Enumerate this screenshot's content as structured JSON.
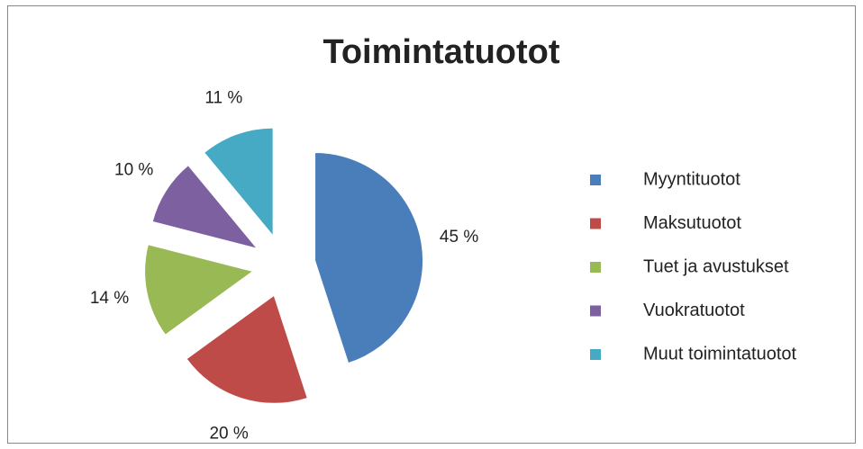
{
  "chart_data": {
    "type": "pie",
    "title": "Toimintatuotot",
    "categories": [
      "Myyntituotot",
      "Maksutuotot",
      "Tuet ja avustukset",
      "Vuokratuotot",
      "Muut toimintatuotot"
    ],
    "values": [
      45,
      20,
      14,
      10,
      11
    ],
    "value_labels": [
      "45 %",
      "20 %",
      "14 %",
      "10 %",
      "11 %"
    ],
    "colors": [
      "#4a7ebb",
      "#be4b48",
      "#98b954",
      "#7d60a0",
      "#46aac5"
    ],
    "legend": "right"
  }
}
